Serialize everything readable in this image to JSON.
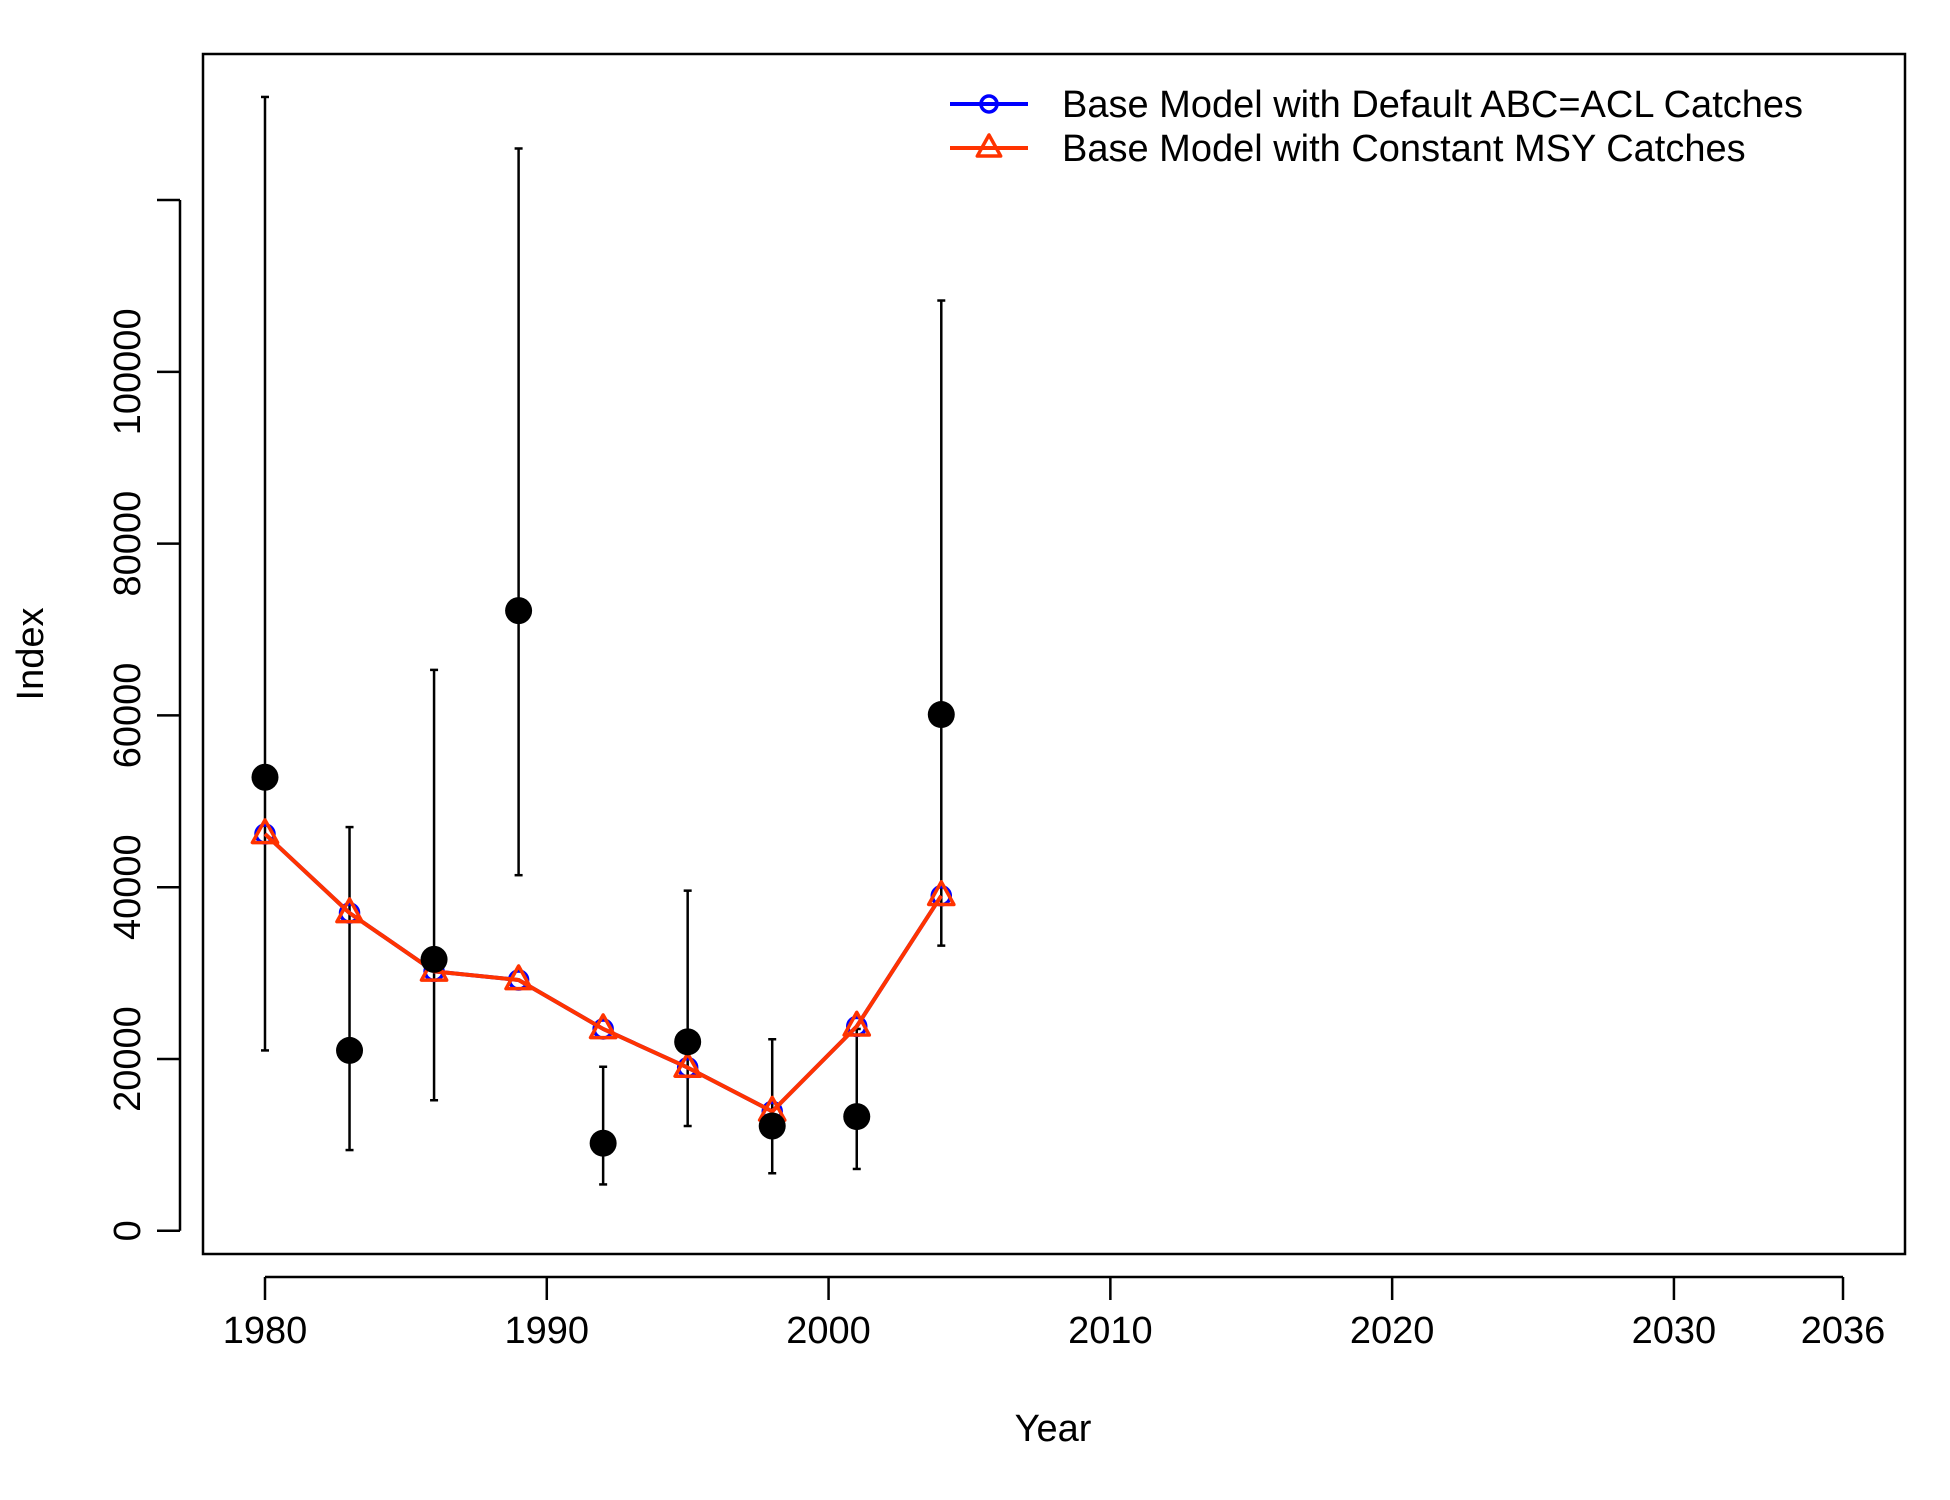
{
  "chart_data": {
    "type": "line",
    "xlabel": "Year",
    "ylabel": "Index",
    "xlim": [
      1977.8,
      2038.2
    ],
    "ylim": [
      -2700,
      137000
    ],
    "x_ticks": [
      1980,
      1990,
      2000,
      2010,
      2020,
      2030,
      2036
    ],
    "y_ticks": [
      0,
      20000,
      40000,
      60000,
      80000,
      100000,
      120000
    ],
    "y_tick_labels": [
      "0",
      "20000",
      "40000",
      "60000",
      "80000",
      "100000",
      ""
    ],
    "legend_position": "top-right",
    "observed": {
      "x": [
        1980,
        1983,
        1986,
        1989,
        1992,
        1995,
        1998,
        2001,
        2004
      ],
      "y": [
        52800,
        21000,
        31600,
        72200,
        10200,
        22000,
        12200,
        13300,
        60100
      ],
      "lower": [
        21000,
        9400,
        15200,
        41400,
        5400,
        12200,
        6700,
        7200,
        33200
      ],
      "upper": [
        132000,
        47000,
        65300,
        126000,
        19100,
        39600,
        22300,
        23500,
        108300
      ]
    },
    "series": [
      {
        "name": "Base Model with Default ABC=ACL Catches",
        "color": "#0000ff",
        "marker": "circle",
        "x": [
          1980,
          1983,
          1986,
          1989,
          1992,
          1995,
          1998,
          2001,
          2004
        ],
        "y": [
          46200,
          37000,
          30200,
          29200,
          23500,
          19000,
          13900,
          23800,
          39000
        ]
      },
      {
        "name": "Base Model with Constant MSY Catches",
        "color": "#ff3300",
        "marker": "triangle",
        "x": [
          1980,
          1983,
          1986,
          1989,
          1992,
          1995,
          1998,
          2001,
          2004
        ],
        "y": [
          46200,
          37000,
          30200,
          29200,
          23500,
          19000,
          13900,
          23800,
          39000
        ]
      }
    ]
  }
}
